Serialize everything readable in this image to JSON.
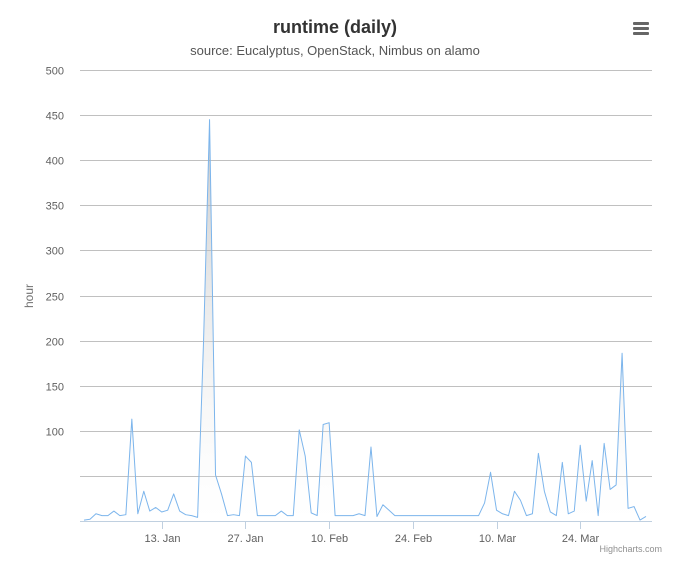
{
  "chart_data": {
    "type": "area",
    "title": "runtime (daily)",
    "subtitle": "source: Eucalyptus, OpenStack, Nimbus on alamo",
    "ylabel": "hour",
    "xlabel": "",
    "ylim": [
      0,
      500
    ],
    "yticks": [
      0,
      50,
      100,
      150,
      200,
      250,
      300,
      350,
      400,
      450,
      500
    ],
    "ytick_labels": [
      "",
      "",
      "100",
      "150",
      "200",
      "250",
      "300",
      "350",
      "400",
      "450",
      "500"
    ],
    "x_start": "2012-12-31",
    "xticks": [
      "2013-01-13",
      "2013-01-27",
      "2013-02-10",
      "2013-02-24",
      "2013-03-10",
      "2013-03-24"
    ],
    "xtick_labels": [
      "13. Jan",
      "27. Jan",
      "10. Feb",
      "24. Feb",
      "10. Mar",
      "24. Mar"
    ],
    "grid": true,
    "legend": "none",
    "series": [
      {
        "color": "#7cb5ec",
        "values": [
          1,
          2,
          8,
          6,
          6,
          11,
          6,
          7,
          113,
          8,
          33,
          11,
          15,
          10,
          12,
          30,
          11,
          7,
          6,
          4,
          200,
          445,
          51,
          30,
          6,
          7,
          6,
          72,
          65,
          6,
          6,
          6,
          6,
          11,
          6,
          6,
          101,
          72,
          9,
          6,
          107,
          109,
          6,
          6,
          6,
          6,
          8,
          6,
          82,
          5,
          18,
          12,
          6,
          6,
          6,
          6,
          6,
          6,
          6,
          6,
          6,
          6,
          6,
          6,
          6,
          6,
          6,
          20,
          54,
          12,
          8,
          6,
          33,
          23,
          6,
          8,
          75,
          33,
          10,
          6,
          65,
          8,
          11,
          84,
          22,
          67,
          6,
          86,
          35,
          40,
          186,
          14,
          16,
          1,
          5
        ]
      }
    ]
  },
  "credits": "Highcharts.com",
  "colors": {
    "line": "#7cb5ec",
    "grid": "#c0c0c0",
    "axis_text": "#606060",
    "title": "#333333",
    "subtitle": "#555555"
  },
  "menu_icon": "hamburger-menu-icon"
}
